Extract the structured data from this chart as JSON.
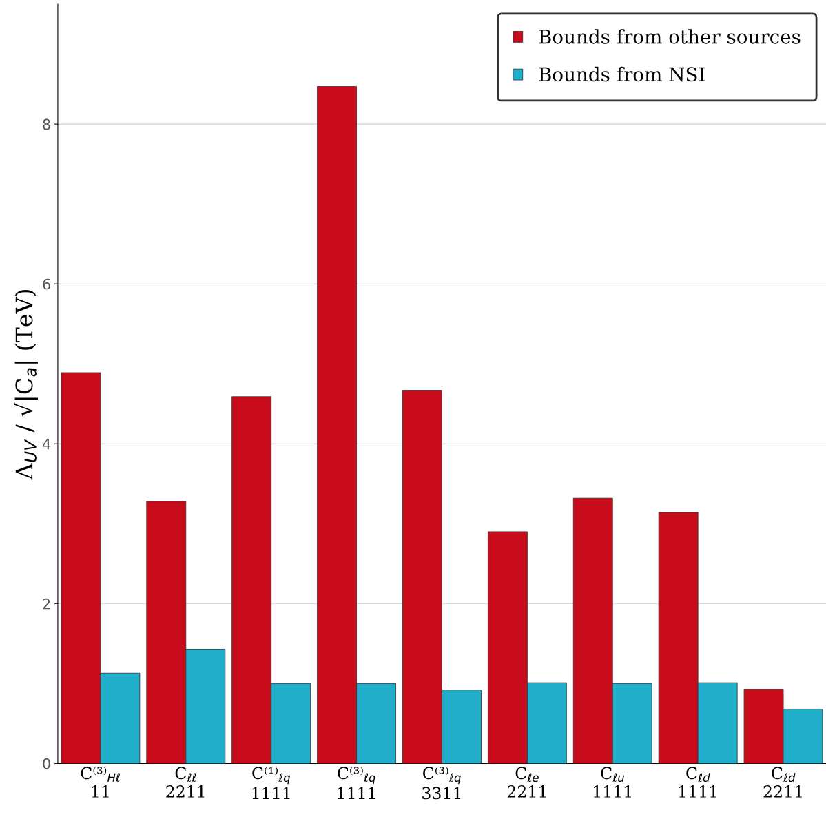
{
  "chart_data": {
    "type": "bar",
    "ylabel": "Λ$_{UV}$ / √|C$_{a}$| (TeV)",
    "categories": [
      "C⁽³⁾$_{Hℓ}$\n11",
      "C$_{ℓℓ}$\n2211",
      "C⁽¹⁾$_{ℓq}$\n1111",
      "C⁽³⁾$_{ℓq}$\n1111",
      "C⁽³⁾$_{ℓq}$\n3311",
      "C$_{ℓe}$\n2211",
      "C$_{ℓu}$\n1111",
      "C$_{ℓd}$\n1111",
      "C$_{ℓd}$\n2211"
    ],
    "series": [
      {
        "name": "Bounds from other sources",
        "color": "#c80c1c",
        "values": [
          4.89,
          3.28,
          4.59,
          8.47,
          4.67,
          2.9,
          3.32,
          3.14,
          0.93
        ]
      },
      {
        "name": "Bounds from NSI",
        "color": "#20aecb",
        "values": [
          1.13,
          1.43,
          1.0,
          1.0,
          0.92,
          1.01,
          1.0,
          1.01,
          0.68
        ]
      }
    ],
    "ylim": [
      0,
      9.5
    ],
    "yticks": [
      0,
      2,
      4,
      6,
      8
    ],
    "grid": "y",
    "legend": "top right"
  }
}
